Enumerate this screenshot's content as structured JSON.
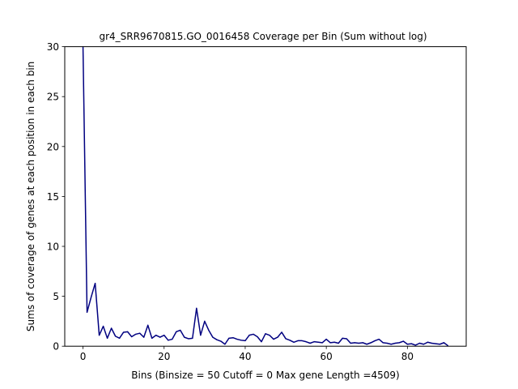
{
  "chart_data": {
    "type": "line",
    "title": "gr4_SRR9670815.GO_0016458 Coverage per Bin (Sum without log)",
    "xlabel": "Bins  (Binsize = 50 Cutoff = 0 Max gene Length =4509)",
    "ylabel": "Sums of coverage of genes at each position in each bin",
    "xlim": [
      -4.5,
      94.5
    ],
    "ylim": [
      0,
      30
    ],
    "xticks": [
      0,
      20,
      40,
      60,
      80
    ],
    "yticks": [
      0,
      5,
      10,
      15,
      20,
      25,
      30
    ],
    "grid": false,
    "series": [
      {
        "color": "#000080",
        "x": [
          0,
          1,
          2,
          3,
          4,
          5,
          6,
          7,
          8,
          9,
          10,
          11,
          12,
          13,
          14,
          15,
          16,
          17,
          18,
          19,
          20,
          21,
          22,
          23,
          24,
          25,
          26,
          27,
          28,
          29,
          30,
          31,
          32,
          33,
          34,
          35,
          36,
          37,
          38,
          39,
          40,
          41,
          42,
          43,
          44,
          45,
          46,
          47,
          48,
          49,
          50,
          51,
          52,
          53,
          54,
          55,
          56,
          57,
          58,
          59,
          60,
          61,
          62,
          63,
          64,
          65,
          66,
          67,
          68,
          69,
          70,
          71,
          72,
          73,
          74,
          75,
          76,
          77,
          78,
          79,
          80,
          81,
          82,
          83,
          84,
          85,
          86,
          87,
          88,
          89,
          90
        ],
        "y": [
          30,
          3.4,
          4.9,
          6.3,
          1.1,
          2.0,
          0.8,
          1.8,
          1.0,
          0.8,
          1.4,
          1.45,
          0.95,
          1.2,
          1.3,
          0.9,
          2.1,
          0.8,
          1.1,
          0.9,
          1.1,
          0.6,
          0.7,
          1.45,
          1.6,
          0.9,
          0.75,
          0.8,
          3.8,
          1.1,
          2.5,
          1.6,
          0.9,
          0.65,
          0.5,
          0.2,
          0.8,
          0.85,
          0.7,
          0.6,
          0.55,
          1.1,
          1.2,
          0.95,
          0.45,
          1.25,
          1.1,
          0.7,
          0.9,
          1.4,
          0.75,
          0.6,
          0.4,
          0.55,
          0.55,
          0.45,
          0.3,
          0.45,
          0.4,
          0.35,
          0.7,
          0.35,
          0.4,
          0.3,
          0.8,
          0.75,
          0.3,
          0.35,
          0.3,
          0.35,
          0.2,
          0.35,
          0.55,
          0.7,
          0.35,
          0.3,
          0.2,
          0.3,
          0.35,
          0.5,
          0.2,
          0.25,
          0.1,
          0.3,
          0.2,
          0.4,
          0.3,
          0.25,
          0.2,
          0.35,
          0.05
        ]
      }
    ]
  }
}
